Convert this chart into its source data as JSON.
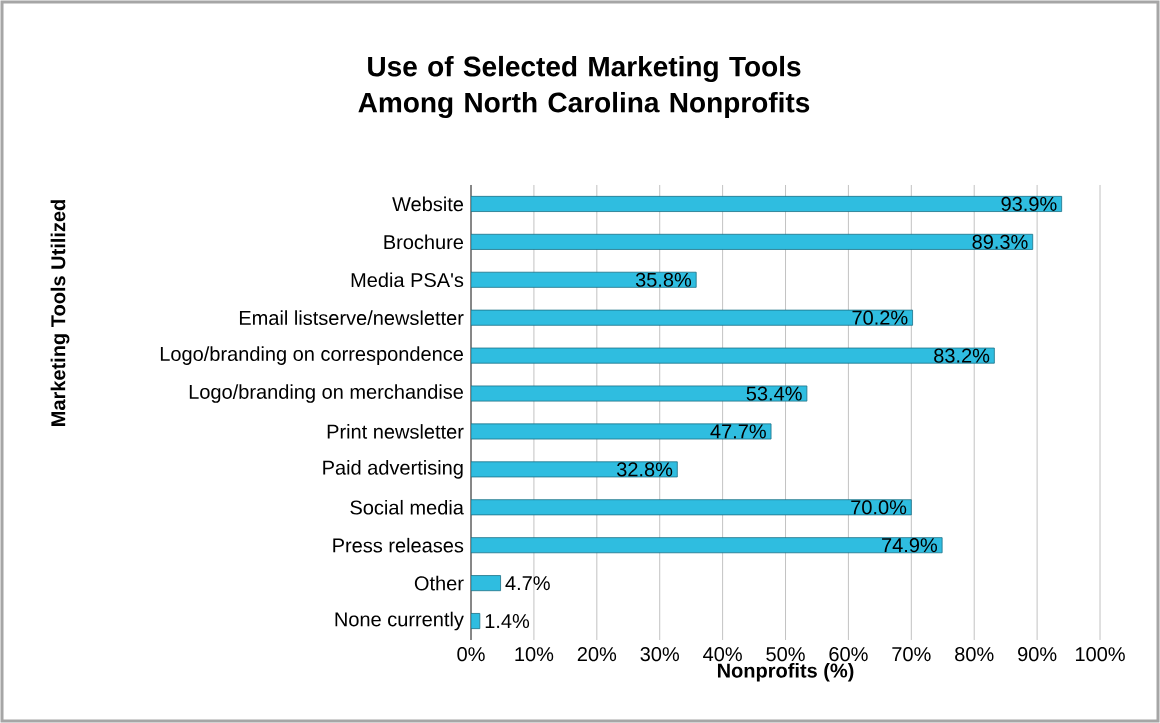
{
  "chart_data": {
    "type": "bar",
    "orientation": "horizontal",
    "title": "Use of Selected Marketing Tools Among North Carolina Nonprofits",
    "xlabel": "Nonprofits (%)",
    "ylabel": "Marketing Tools Utilized",
    "categories": [
      "Website",
      "Brochure",
      "Media PSA's",
      "Email listserve/newsletter",
      "Logo/branding on correspondence",
      "Logo/branding on merchandise",
      "Print newsletter",
      "Paid advertising",
      "Social media",
      "Press releases",
      "Other",
      "None currently"
    ],
    "values": [
      93.9,
      89.3,
      35.8,
      70.2,
      83.2,
      53.4,
      47.7,
      32.8,
      70.0,
      74.9,
      4.7,
      1.4
    ],
    "value_labels": [
      "93.9%",
      "89.3%",
      "35.8%",
      "70.2%",
      "83.2%",
      "53.4%",
      "47.7%",
      "32.8%",
      "70.0%",
      "74.9%",
      "4.7%",
      "1.4%"
    ],
    "color": "#2fbde0",
    "xlim": [
      0,
      100
    ],
    "xticks": [
      {
        "value": 0,
        "label": "0%"
      },
      {
        "value": 10,
        "label": "10%"
      },
      {
        "value": 20,
        "label": "20%"
      },
      {
        "value": 30,
        "label": "30%"
      },
      {
        "value": 40,
        "label": "40%"
      },
      {
        "value": 50,
        "label": "50%"
      },
      {
        "value": 60,
        "label": "60%"
      },
      {
        "value": 70,
        "label": "70%"
      },
      {
        "value": 80,
        "label": "80%"
      },
      {
        "value": 90,
        "label": "90%"
      },
      {
        "value": 100,
        "label": "100%"
      }
    ],
    "grid": "x"
  }
}
